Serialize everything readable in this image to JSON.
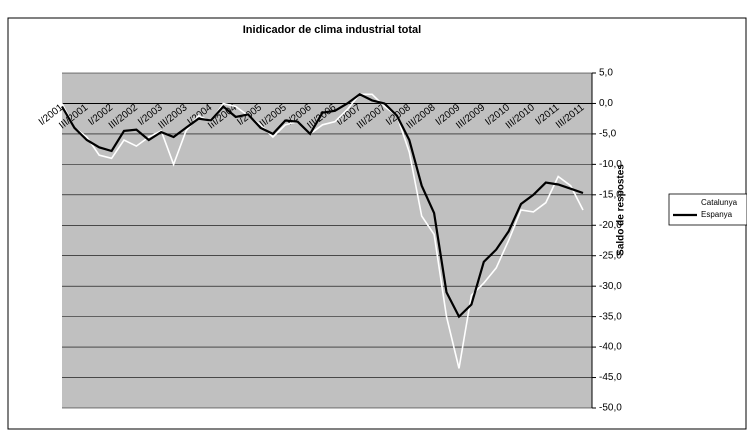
{
  "chart_data": {
    "type": "line",
    "title": "Inidicador de clima industrial total",
    "y_label": "Saldo de respostes",
    "categories": [
      "I/2001",
      null,
      "III/2001",
      null,
      "I/2002",
      null,
      "III/2002",
      null,
      "I/2003",
      null,
      "III/2003",
      null,
      "I/2004",
      null,
      "III/2004",
      null,
      "I/2005",
      null,
      "III/2005",
      null,
      "I/2006",
      null,
      "III/2006",
      null,
      "I/2007",
      null,
      "III/2007",
      null,
      "I/2008",
      null,
      "III/2008",
      null,
      "I/2009",
      null,
      "III/2009",
      null,
      "I/2010",
      null,
      "III/2010",
      null,
      "I/2011",
      null,
      "III/2011"
    ],
    "series": [
      {
        "name": "Catalunya",
        "color": "#ffffff",
        "values": [
          0,
          -4,
          -5.5,
          -8.5,
          -9,
          -6,
          -7,
          -5.5,
          -4.5,
          -10,
          -4.5,
          -2,
          -3,
          0,
          -0.5,
          -2,
          -3.5,
          -5.5,
          -3.5,
          -3,
          -5,
          -3.5,
          -3,
          -1,
          1.5,
          1.5,
          -0.5,
          -2,
          -8,
          -18.5,
          -21.5,
          -35,
          -43.5,
          -31.5,
          -29.5,
          -27,
          -22.5,
          -17.5,
          -17.8,
          -16.3,
          -12,
          -13.5,
          -17.5
        ]
      },
      {
        "name": "Espanya",
        "color": "#000000",
        "values": [
          -0.5,
          -4,
          -6,
          -7.2,
          -7.8,
          -4.5,
          -4.3,
          -6,
          -4.7,
          -5.5,
          -4,
          -2.5,
          -2.8,
          -0.5,
          -2.2,
          -1.8,
          -4,
          -5,
          -2.8,
          -3,
          -5,
          -1.5,
          -1.2,
          0,
          1.5,
          0.5,
          0,
          -2,
          -6,
          -13.5,
          -18,
          -31,
          -35,
          -33,
          -26,
          -24,
          -21,
          -16.5,
          -15,
          -13,
          -13.3,
          -14,
          -14.7
        ]
      }
    ],
    "ylim": [
      -50,
      5
    ],
    "yticks": [
      {
        "value": 5,
        "label": "5,0"
      },
      {
        "value": 0,
        "label": "0,0"
      },
      {
        "value": -5,
        "label": "-5,0"
      },
      {
        "value": -10,
        "label": "-10,0"
      },
      {
        "value": -15,
        "label": "-15,0"
      },
      {
        "value": -20,
        "label": "-20,0"
      },
      {
        "value": -25,
        "label": "-25,0"
      },
      {
        "value": -30,
        "label": "-30,0"
      },
      {
        "value": -35,
        "label": "-35,0"
      },
      {
        "value": -40,
        "label": "-40,0"
      },
      {
        "value": -45,
        "label": "-45,0"
      },
      {
        "value": -50,
        "label": "-50,0"
      }
    ],
    "grid": true,
    "plot_background": "#c0c0c0"
  }
}
